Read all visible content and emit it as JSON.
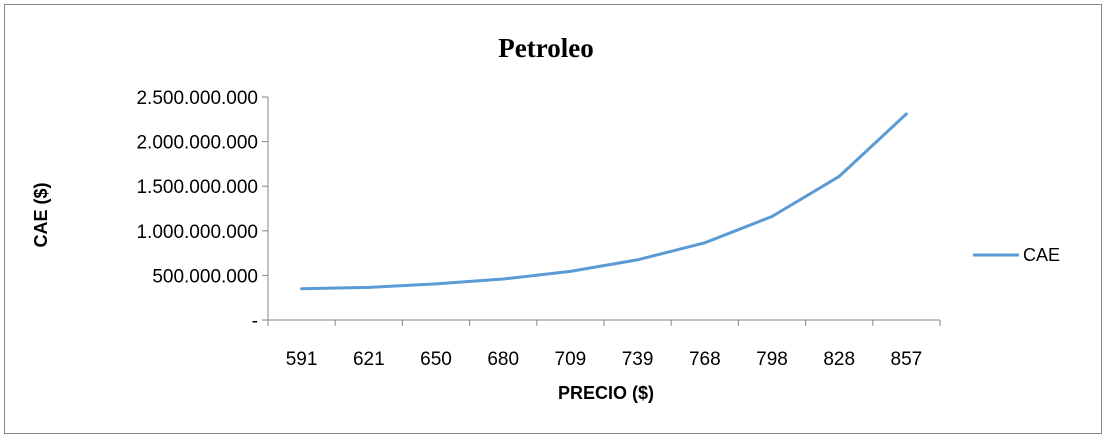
{
  "chart_data": {
    "type": "line",
    "title": "Petroleo",
    "xlabel": "PRECIO ($)",
    "ylabel": "CAE ($)",
    "categories": [
      "591",
      "621",
      "650",
      "680",
      "709",
      "739",
      "768",
      "798",
      "828",
      "857"
    ],
    "series": [
      {
        "name": "CAE",
        "color": "#5B9BD5",
        "values": [
          350000000,
          365000000,
          405000000,
          460000000,
          545000000,
          675000000,
          865000000,
          1160000000,
          1610000000,
          2310000000
        ]
      }
    ],
    "ylim": [
      0,
      2500000000
    ],
    "yticks": [
      0,
      500000000,
      1000000000,
      1500000000,
      2000000000,
      2500000000
    ],
    "ytick_labels": [
      "-",
      "500.000.000",
      "1.000.000.000",
      "1.500.000.000",
      "2.000.000.000",
      "2.500.000.000"
    ],
    "grid": false,
    "legend": "right"
  }
}
